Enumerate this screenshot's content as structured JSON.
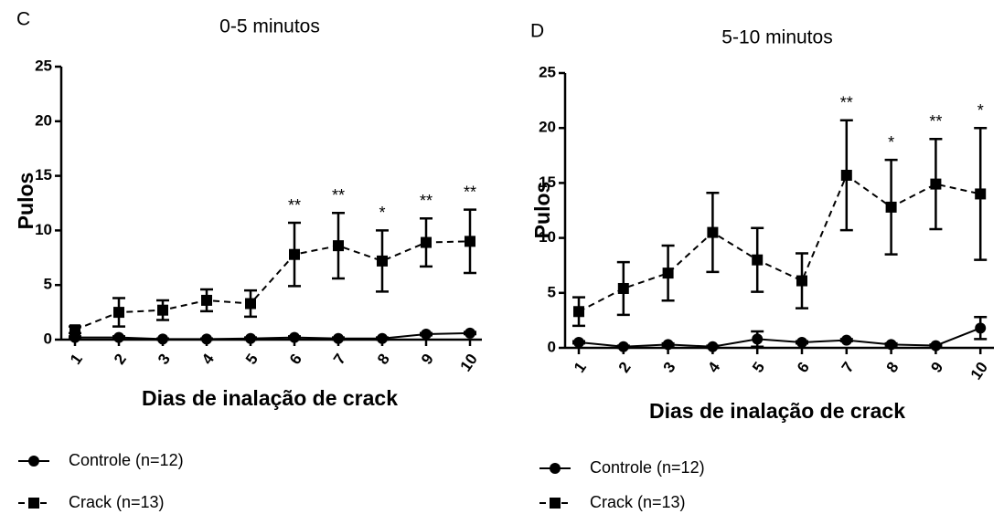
{
  "chart_data": [
    {
      "type": "line",
      "panel_label": "C",
      "title": "0-5 minutos",
      "x_label": "Dias de inalação de crack",
      "y_label": "Pulos",
      "categories": [
        "1",
        "2",
        "3",
        "4",
        "5",
        "6",
        "7",
        "8",
        "9",
        "10"
      ],
      "ylim": [
        0,
        25
      ],
      "yticks": [
        0,
        5,
        10,
        15,
        20,
        25
      ],
      "series": [
        {
          "name": "Controle (n=12)",
          "color": "#000000",
          "marker": "circle",
          "line_style": "solid",
          "values": [
            0.2,
            0.2,
            0.05,
            0.05,
            0.1,
            0.2,
            0.1,
            0.1,
            0.5,
            0.6
          ],
          "errors": [
            0.1,
            0.1,
            0.05,
            0.05,
            0.1,
            0.1,
            0.1,
            0.1,
            0.1,
            0.1
          ]
        },
        {
          "name": "Crack (n=13)",
          "color": "#000000",
          "marker": "square",
          "line_style": "dashed",
          "values": [
            0.9,
            2.5,
            2.7,
            3.6,
            3.3,
            7.8,
            8.6,
            7.2,
            8.9,
            9.0
          ],
          "errors": [
            0.3,
            1.3,
            0.9,
            1.0,
            1.2,
            2.9,
            3.0,
            2.8,
            2.2,
            2.9
          ]
        }
      ],
      "annotations": [
        {
          "category": "6",
          "text": "**"
        },
        {
          "category": "7",
          "text": "**"
        },
        {
          "category": "8",
          "text": "*"
        },
        {
          "category": "9",
          "text": "**"
        },
        {
          "category": "10",
          "text": "**"
        }
      ]
    },
    {
      "type": "line",
      "panel_label": "D",
      "title": "5-10 minutos",
      "x_label": "Dias de inalação de crack",
      "y_label": "Pulos",
      "categories": [
        "1",
        "2",
        "3",
        "4",
        "5",
        "6",
        "7",
        "8",
        "9",
        "10"
      ],
      "ylim": [
        0,
        25
      ],
      "yticks": [
        0,
        5,
        10,
        15,
        20,
        25
      ],
      "series": [
        {
          "name": "Controle (n=12)",
          "color": "#000000",
          "marker": "circle",
          "line_style": "solid",
          "values": [
            0.5,
            0.1,
            0.3,
            0.1,
            0.8,
            0.5,
            0.7,
            0.3,
            0.2,
            1.8
          ],
          "errors": [
            0.1,
            0.1,
            0.1,
            0.1,
            0.7,
            0.1,
            0.1,
            0.1,
            0.1,
            1.0
          ]
        },
        {
          "name": "Crack (n=13)",
          "color": "#000000",
          "marker": "square",
          "line_style": "dashed",
          "values": [
            3.3,
            5.4,
            6.8,
            10.5,
            8.0,
            6.1,
            15.7,
            12.8,
            14.9,
            14.0
          ],
          "errors": [
            1.3,
            2.4,
            2.5,
            3.6,
            2.9,
            2.5,
            5.0,
            4.3,
            4.1,
            6.0
          ]
        }
      ],
      "annotations": [
        {
          "category": "7",
          "text": "**"
        },
        {
          "category": "8",
          "text": "*"
        },
        {
          "category": "9",
          "text": "**"
        },
        {
          "category": "10",
          "text": "*"
        }
      ]
    }
  ]
}
